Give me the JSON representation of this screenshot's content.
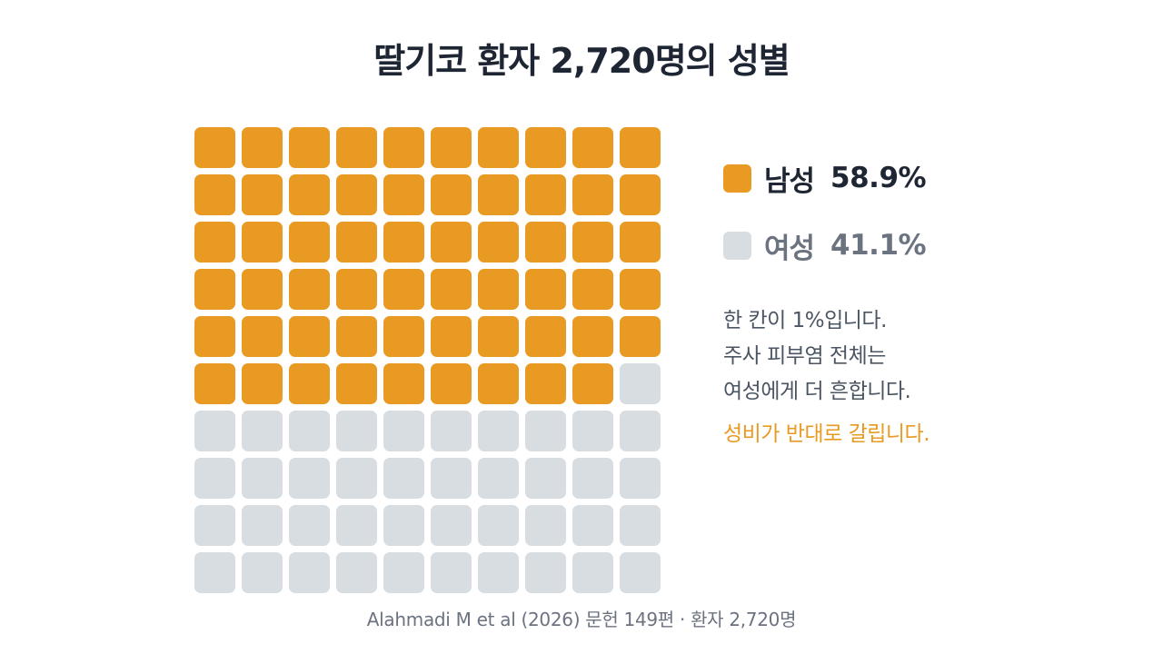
{
  "title": "딸기코 환자 2,720명의 성별",
  "chart_data": {
    "type": "waffle",
    "grid": [
      10,
      10
    ],
    "unit": "1%",
    "series": [
      {
        "name": "남성",
        "value": 58.9,
        "percent_label": "58.9%",
        "cells": 59,
        "color": "#E89A22"
      },
      {
        "name": "여성",
        "value": 41.1,
        "percent_label": "41.1%",
        "cells": 41,
        "color": "#D8DDE2"
      }
    ],
    "legend_position": "right"
  },
  "legend": [
    {
      "label": "남성",
      "value": "58.9%",
      "swatch_color": "#E89A22",
      "text_color": "#1E2533"
    },
    {
      "label": "여성",
      "value": "41.1%",
      "swatch_color": "#D8DDE2",
      "text_color": "#6B7280"
    }
  ],
  "notes": {
    "lines": [
      "한 칸이 1%입니다.",
      "주사 피부염 전체는",
      "여성에게 더 흔합니다."
    ],
    "highlight": "성비가 반대로 갈립니다.",
    "highlight_color": "#E89A22"
  },
  "source": "Alahmadi M et al (2026) 문헌 149편 · 환자 2,720명"
}
